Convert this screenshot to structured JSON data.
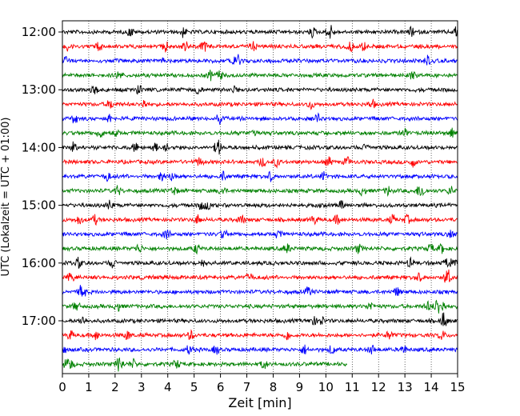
{
  "chart_data": {
    "type": "line",
    "title": "",
    "xlabel": "Zeit  [min]",
    "ylabel": "UTC (Lokalzeit = UTC + 01:00)",
    "xlim": [
      0,
      15
    ],
    "x_ticks": [
      "0",
      "1",
      "2",
      "3",
      "4",
      "5",
      "6",
      "7",
      "8",
      "9",
      "10",
      "11",
      "12",
      "13",
      "14",
      "15"
    ],
    "y_tick_labels": [
      "12:00",
      "13:00",
      "14:00",
      "15:00",
      "16:00",
      "17:00"
    ],
    "y_tick_rows": [
      0,
      4,
      8,
      12,
      16,
      20
    ],
    "grid": "vertical dotted",
    "trace_colors": [
      "#000000",
      "#ff0000",
      "#0000ff",
      "#008000"
    ],
    "traces": [
      {
        "start": "12:00",
        "color": "#000000",
        "end_min": 15
      },
      {
        "start": "12:15",
        "color": "#ff0000",
        "end_min": 15
      },
      {
        "start": "12:30",
        "color": "#0000ff",
        "end_min": 15
      },
      {
        "start": "12:45",
        "color": "#008000",
        "end_min": 15
      },
      {
        "start": "13:00",
        "color": "#000000",
        "end_min": 15
      },
      {
        "start": "13:15",
        "color": "#ff0000",
        "end_min": 15
      },
      {
        "start": "13:30",
        "color": "#0000ff",
        "end_min": 15
      },
      {
        "start": "13:45",
        "color": "#008000",
        "end_min": 15
      },
      {
        "start": "14:00",
        "color": "#000000",
        "end_min": 15
      },
      {
        "start": "14:15",
        "color": "#ff0000",
        "end_min": 15
      },
      {
        "start": "14:30",
        "color": "#0000ff",
        "end_min": 15
      },
      {
        "start": "14:45",
        "color": "#008000",
        "end_min": 15
      },
      {
        "start": "15:00",
        "color": "#000000",
        "end_min": 15
      },
      {
        "start": "15:15",
        "color": "#ff0000",
        "end_min": 15
      },
      {
        "start": "15:30",
        "color": "#0000ff",
        "end_min": 15
      },
      {
        "start": "15:45",
        "color": "#008000",
        "end_min": 15
      },
      {
        "start": "16:00",
        "color": "#000000",
        "end_min": 15
      },
      {
        "start": "16:15",
        "color": "#ff0000",
        "end_min": 15
      },
      {
        "start": "16:30",
        "color": "#0000ff",
        "end_min": 15
      },
      {
        "start": "16:45",
        "color": "#008000",
        "end_min": 15
      },
      {
        "start": "17:00",
        "color": "#000000",
        "end_min": 15
      },
      {
        "start": "17:15",
        "color": "#ff0000",
        "end_min": 15
      },
      {
        "start": "17:30",
        "color": "#0000ff",
        "end_min": 15
      },
      {
        "start": "17:45",
        "color": "#008000",
        "end_min": 10.8
      }
    ]
  }
}
